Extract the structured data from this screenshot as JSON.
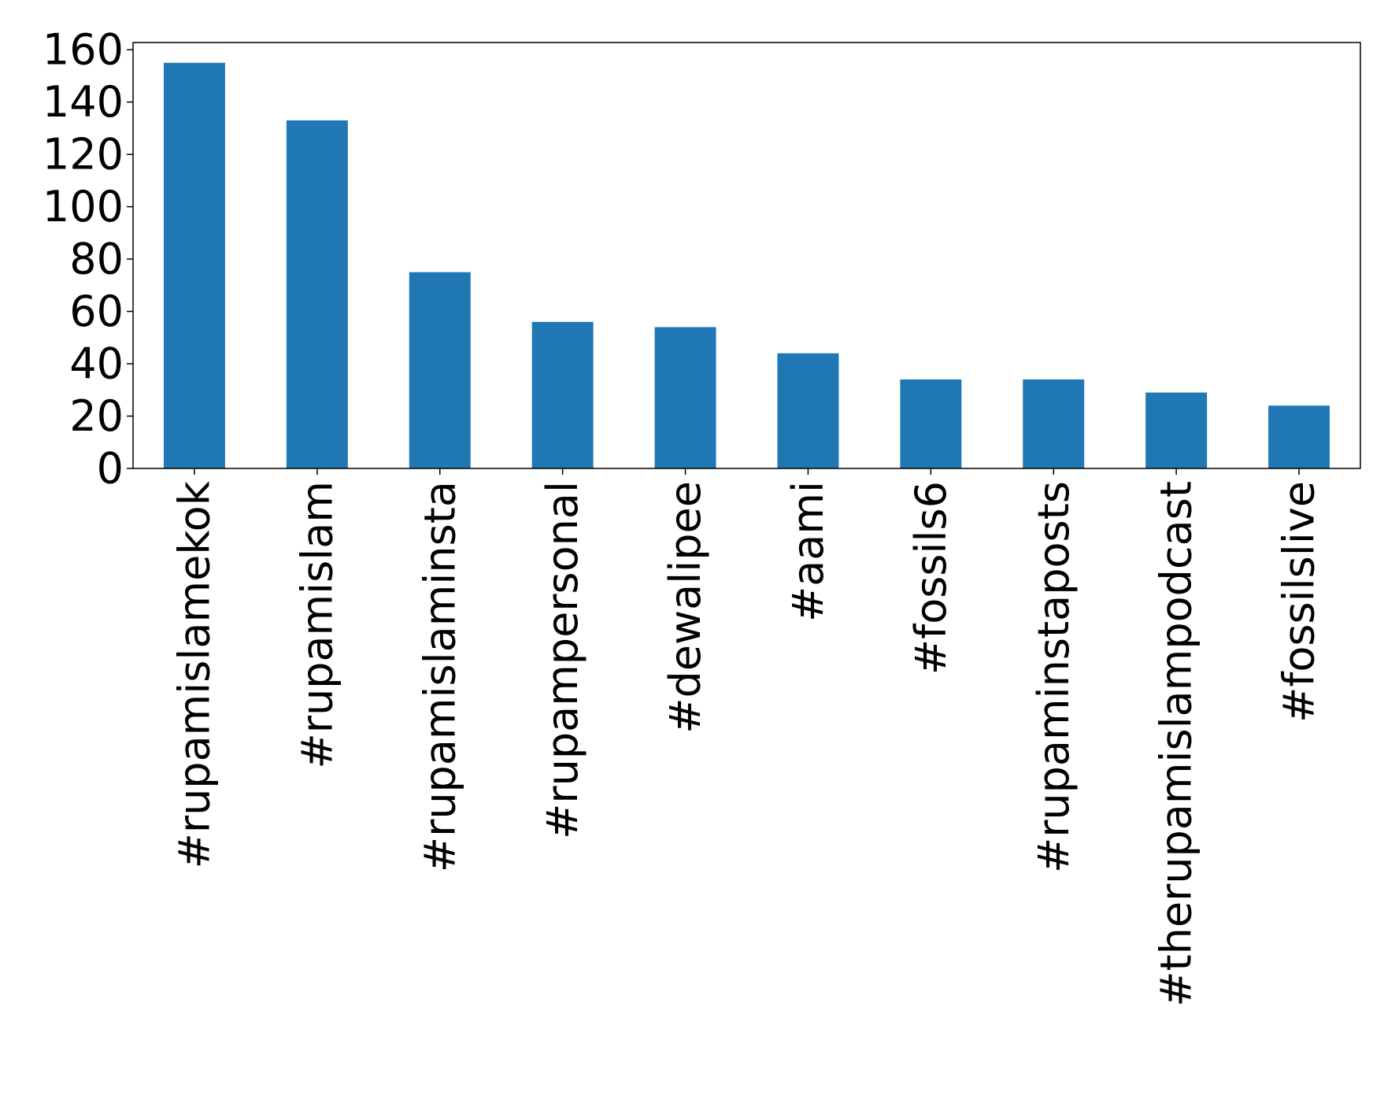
{
  "chart_data": {
    "type": "bar",
    "categories": [
      "#rupamislamekok",
      "#rupamislam",
      "#rupamislaminsta",
      "#rupampersonal",
      "#dewalipee",
      "#aami",
      "#fossils6",
      "#rupaminstaposts",
      "#therupamislampodcast",
      "#fossilslive"
    ],
    "values": [
      155,
      133,
      75,
      56,
      54,
      44,
      34,
      34,
      29,
      24
    ],
    "color": "#1f77b4",
    "ylim": [
      0,
      162.75
    ],
    "yticks": [
      0,
      20,
      40,
      60,
      80,
      100,
      120,
      140,
      160
    ],
    "grid": false
  }
}
